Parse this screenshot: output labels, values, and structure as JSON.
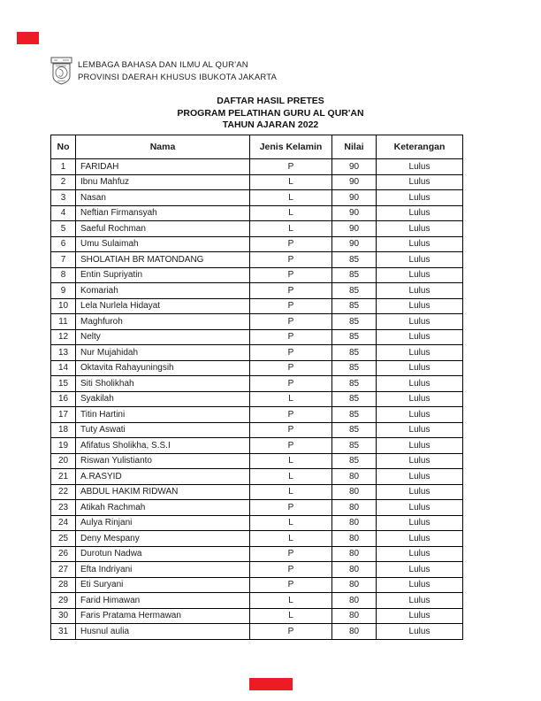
{
  "letterhead": {
    "logo_icon": "institution-emblem-icon",
    "line1": "LEMBAGA BAHASA DAN ILMU AL QUR'AN",
    "line2": "PROVINSI DAERAH KHUSUS IBUKOTA JAKARTA"
  },
  "title": {
    "line1": "DAFTAR HASIL PRETES",
    "line2": "PROGRAM PELATIHAN GURU AL QUR'AN",
    "line3": "TAHUN AJARAN 2022"
  },
  "colors": {
    "redaction": "#ed1c24",
    "border": "#000000",
    "text": "#1c1c1c"
  },
  "table": {
    "columns": [
      "No",
      "Nama",
      "Jenis Kelamin",
      "Nilai",
      "Keterangan"
    ],
    "rows": [
      [
        1,
        "FARIDAH",
        "P",
        90,
        "Lulus"
      ],
      [
        2,
        "Ibnu Mahfuz",
        "L",
        90,
        "Lulus"
      ],
      [
        3,
        "Nasan",
        "L",
        90,
        "Lulus"
      ],
      [
        4,
        "Neftian Firmansyah",
        "L",
        90,
        "Lulus"
      ],
      [
        5,
        "Saeful Rochman",
        "L",
        90,
        "Lulus"
      ],
      [
        6,
        "Umu Sulaimah",
        "P",
        90,
        "Lulus"
      ],
      [
        7,
        "SHOLATIAH BR MATONDANG",
        "P",
        85,
        "Lulus"
      ],
      [
        8,
        "Entin Supriyatin",
        "P",
        85,
        "Lulus"
      ],
      [
        9,
        "Komariah",
        "P",
        85,
        "Lulus"
      ],
      [
        10,
        "Lela Nurlela Hidayat",
        "P",
        85,
        "Lulus"
      ],
      [
        11,
        "Maghfuroh",
        "P",
        85,
        "Lulus"
      ],
      [
        12,
        "Nelty",
        "P",
        85,
        "Lulus"
      ],
      [
        13,
        "Nur Mujahidah",
        "P",
        85,
        "Lulus"
      ],
      [
        14,
        "Oktavita Rahayuningsih",
        "P",
        85,
        "Lulus"
      ],
      [
        15,
        "Siti Sholikhah",
        "P",
        85,
        "Lulus"
      ],
      [
        16,
        "Syakilah",
        "L",
        85,
        "Lulus"
      ],
      [
        17,
        "Titin Hartini",
        "P",
        85,
        "Lulus"
      ],
      [
        18,
        "Tuty Aswati",
        "P",
        85,
        "Lulus"
      ],
      [
        19,
        "Afifatus Sholikha, S.S.I",
        "P",
        85,
        "Lulus"
      ],
      [
        20,
        "Riswan Yulistianto",
        "L",
        85,
        "Lulus"
      ],
      [
        21,
        "A.RASYID",
        "L",
        80,
        "Lulus"
      ],
      [
        22,
        "ABDUL HAKIM RIDWAN",
        "L",
        80,
        "Lulus"
      ],
      [
        23,
        "Atikah Rachmah",
        "P",
        80,
        "Lulus"
      ],
      [
        24,
        "Aulya Rinjani",
        "L",
        80,
        "Lulus"
      ],
      [
        25,
        "Deny Mespany",
        "L",
        80,
        "Lulus"
      ],
      [
        26,
        "Durotun Nadwa",
        "P",
        80,
        "Lulus"
      ],
      [
        27,
        "Efta Indriyani",
        "P",
        80,
        "Lulus"
      ],
      [
        28,
        "Eti Suryani",
        "P",
        80,
        "Lulus"
      ],
      [
        29,
        "Farid Himawan",
        "L",
        80,
        "Lulus"
      ],
      [
        30,
        "Faris Pratama Hermawan",
        "L",
        80,
        "Lulus"
      ],
      [
        31,
        "Husnul aulia",
        "P",
        80,
        "Lulus"
      ]
    ]
  }
}
